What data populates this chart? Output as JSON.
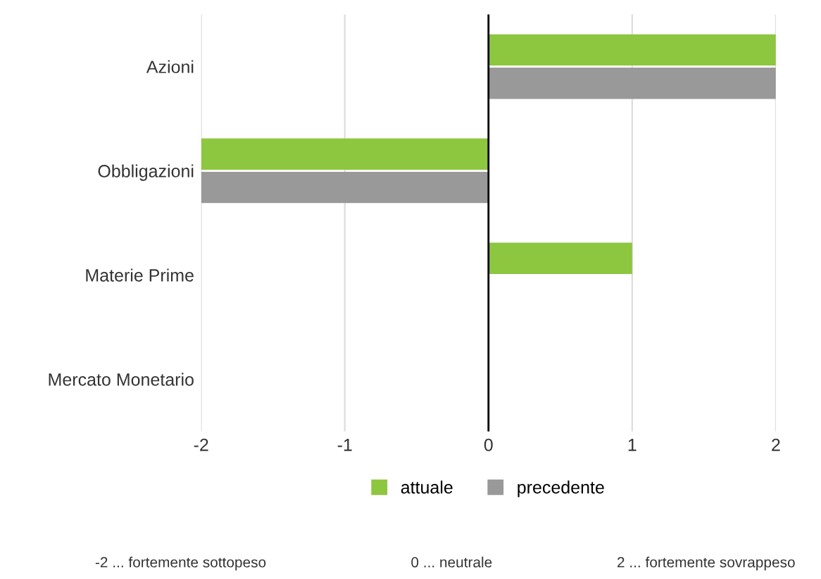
{
  "chart_data": {
    "type": "bar",
    "orientation": "horizontal",
    "categories": [
      "Azioni",
      "Obbligazioni",
      "Materie Prime",
      "Mercato Monetario"
    ],
    "series": [
      {
        "name": "attuale",
        "color": "#8dc63f",
        "values": [
          2,
          -2,
          1,
          0
        ]
      },
      {
        "name": "precedente",
        "color": "#999999",
        "values": [
          2,
          -2,
          0,
          0
        ]
      }
    ],
    "xlim": [
      -2,
      2
    ],
    "xticks": [
      -2,
      -1,
      0,
      1,
      2
    ],
    "grid": "x",
    "legend": "bottom",
    "ref_lines": [
      {
        "axis": "x",
        "value": 0,
        "color": "#000000"
      }
    ],
    "annotations": [
      "-2 ... fortemente sottopeso",
      "0 ... neutrale",
      "2 ... fortemente sovrappeso"
    ]
  }
}
